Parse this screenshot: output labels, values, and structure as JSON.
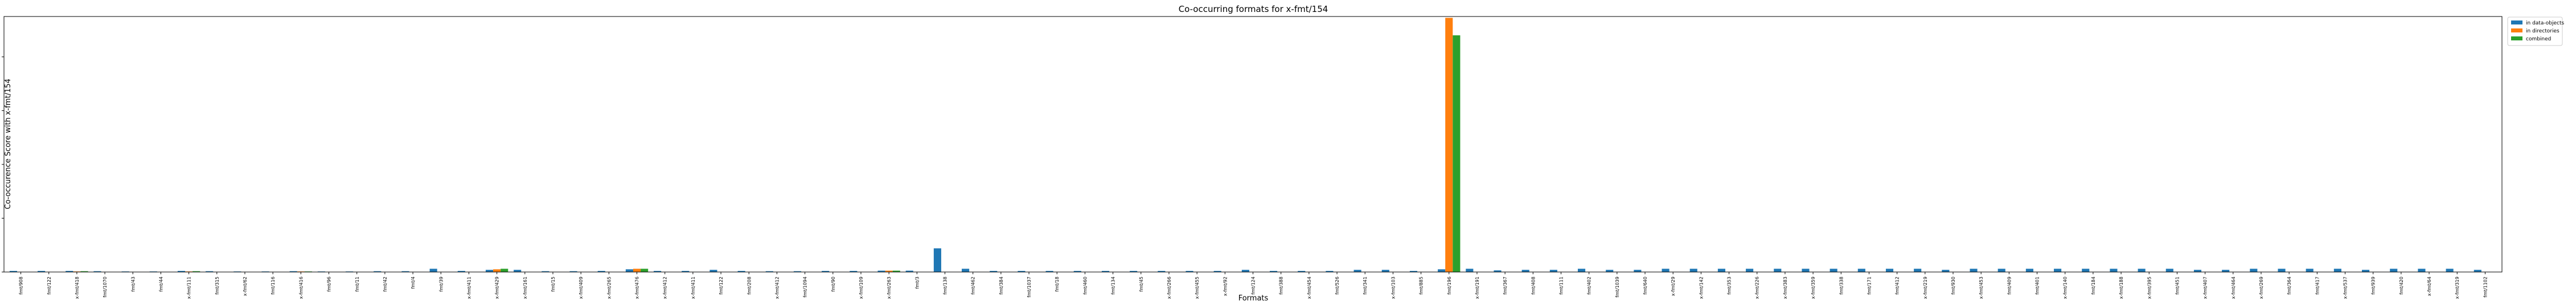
{
  "chart_data": {
    "type": "bar",
    "title": "Co-occurring formats for x-fmt/154",
    "xlabel": "Formats",
    "ylabel": "Co-occurence Score with x-fmt/154",
    "ylim": [
      0,
      0.95
    ],
    "yticks": [
      "0.0",
      "0.2",
      "0.4",
      "0.6",
      "0.8"
    ],
    "ytick_values": [
      0,
      0.2,
      0.4,
      0.6,
      0.8
    ],
    "grid": false,
    "legend_position": "outside top-right",
    "categories": [
      "fmt/908",
      "fmt/122",
      "x-fmt/418",
      "fmt/1070",
      "fmt/43",
      "fmt/44",
      "x-fmt/111",
      "fmt/315",
      "x-fmt/62",
      "fmt/116",
      "x-fmt/416",
      "fmt/96",
      "fmt/11",
      "fmt/42",
      "fmt/4",
      "fmt/39",
      "x-fmt/411",
      "x-fmt/429",
      "x-fmt/161",
      "fmt/15",
      "x-fmt/409",
      "x-fmt/265",
      "x-fmt/476",
      "x-fmt/412",
      "x-fmt/411",
      "fmt/122",
      "fmt/208",
      "x-fmt/412",
      "fmt/1094",
      "fmt/90",
      "x-fmt/109",
      "x-fmt/263",
      "fmt/3",
      "fmt/138",
      "fmt/462",
      "fmt/384",
      "fmt/1037",
      "fmt/18",
      "fmt/460",
      "fmt/134",
      "fmt/45",
      "x-fmt/266",
      "x-fmt/455",
      "x-fmt/92",
      "fmt/124",
      "fmt/388",
      "x-fmt/454",
      "fmt/526",
      "fmt/341",
      "x-fmt/103",
      "fmt/885",
      "fmt/196",
      "x-fmt/191",
      "fmt/367",
      "fmt/408",
      "fmt/111",
      "fmt/402",
      "fmt/1039",
      "fmt/640",
      "x-fmt/29",
      "x-fmt/142",
      "fmt/353",
      "x-fmt/226",
      "x-fmt/383",
      "x-fmt/359",
      "fmt/338",
      "fmt/171",
      "fmt/412",
      "x-fmt/219",
      "fmt/930",
      "x-fmt/453",
      "fmt/409",
      "fmt/401",
      "x-fmt/140",
      "fmt/184",
      "x-fmt/188",
      "x-fmt/395",
      "fmt/451",
      "x-fmt/407",
      "x-fmt/464",
      "x-fmt/269",
      "fmt/364",
      "fmt/417",
      "x-fmt/537",
      "fmt/939",
      "fmt/420",
      "x-fmt/64",
      "x-fmt/319",
      "fmt/1102"
    ],
    "series": [
      {
        "name": "in data-objects",
        "color": "#1f77b4",
        "values": [
          0.004,
          0.004,
          0.004,
          0.003,
          0.002,
          0.002,
          0.004,
          0.003,
          0.002,
          0.002,
          0.003,
          0.002,
          0.002,
          0.003,
          0.003,
          0.012,
          0.004,
          0.008,
          0.008,
          0.003,
          0.003,
          0.004,
          0.01,
          0.004,
          0.004,
          0.008,
          0.004,
          0.003,
          0.003,
          0.004,
          0.004,
          0.005,
          0.005,
          0.088,
          0.012,
          0.004,
          0.004,
          0.004,
          0.004,
          0.004,
          0.004,
          0.004,
          0.004,
          0.004,
          0.008,
          0.004,
          0.004,
          0.004,
          0.008,
          0.008,
          0.004,
          0.01,
          0.012,
          0.006,
          0.008,
          0.008,
          0.012,
          0.008,
          0.008,
          0.012,
          0.012,
          0.012,
          0.012,
          0.012,
          0.012,
          0.012,
          0.012,
          0.012,
          0.012,
          0.008,
          0.012,
          0.012,
          0.012,
          0.012,
          0.012,
          0.012,
          0.012,
          0.012,
          0.008,
          0.008,
          0.012,
          0.012,
          0.012,
          0.012,
          0.008,
          0.012,
          0.012,
          0.012,
          0.008
        ]
      },
      {
        "name": "in directories",
        "color": "#ff7f0e",
        "values": [
          0,
          0,
          0.002,
          0,
          0,
          0,
          0.002,
          0,
          0,
          0,
          0.002,
          0,
          0,
          0,
          0,
          0,
          0,
          0.01,
          0,
          0,
          0,
          0,
          0.012,
          0,
          0,
          0,
          0,
          0,
          0,
          0,
          0,
          0.005,
          0,
          0,
          0,
          0,
          0,
          0,
          0,
          0,
          0,
          0,
          0,
          0,
          0,
          0,
          0,
          0,
          0,
          0,
          0,
          0.945,
          0,
          0,
          0,
          0,
          0,
          0,
          0,
          0,
          0,
          0,
          0,
          0,
          0,
          0,
          0,
          0,
          0,
          0,
          0,
          0,
          0,
          0,
          0,
          0,
          0,
          0,
          0,
          0,
          0,
          0,
          0,
          0,
          0,
          0,
          0,
          0,
          0
        ]
      },
      {
        "name": "combined",
        "color": "#2ca02c",
        "values": [
          0,
          0,
          0.003,
          0,
          0,
          0,
          0.003,
          0,
          0,
          0,
          0.002,
          0,
          0,
          0,
          0,
          0,
          0,
          0.012,
          0,
          0,
          0,
          0,
          0.012,
          0,
          0,
          0,
          0,
          0,
          0,
          0,
          0,
          0.005,
          0,
          0,
          0,
          0,
          0,
          0,
          0,
          0,
          0,
          0,
          0,
          0,
          0,
          0,
          0,
          0,
          0,
          0,
          0,
          0.88,
          0,
          0,
          0,
          0,
          0,
          0,
          0,
          0,
          0,
          0,
          0,
          0,
          0,
          0,
          0,
          0,
          0,
          0,
          0,
          0,
          0,
          0,
          0,
          0,
          0,
          0,
          0,
          0,
          0,
          0,
          0,
          0,
          0,
          0,
          0,
          0,
          0
        ]
      }
    ]
  }
}
